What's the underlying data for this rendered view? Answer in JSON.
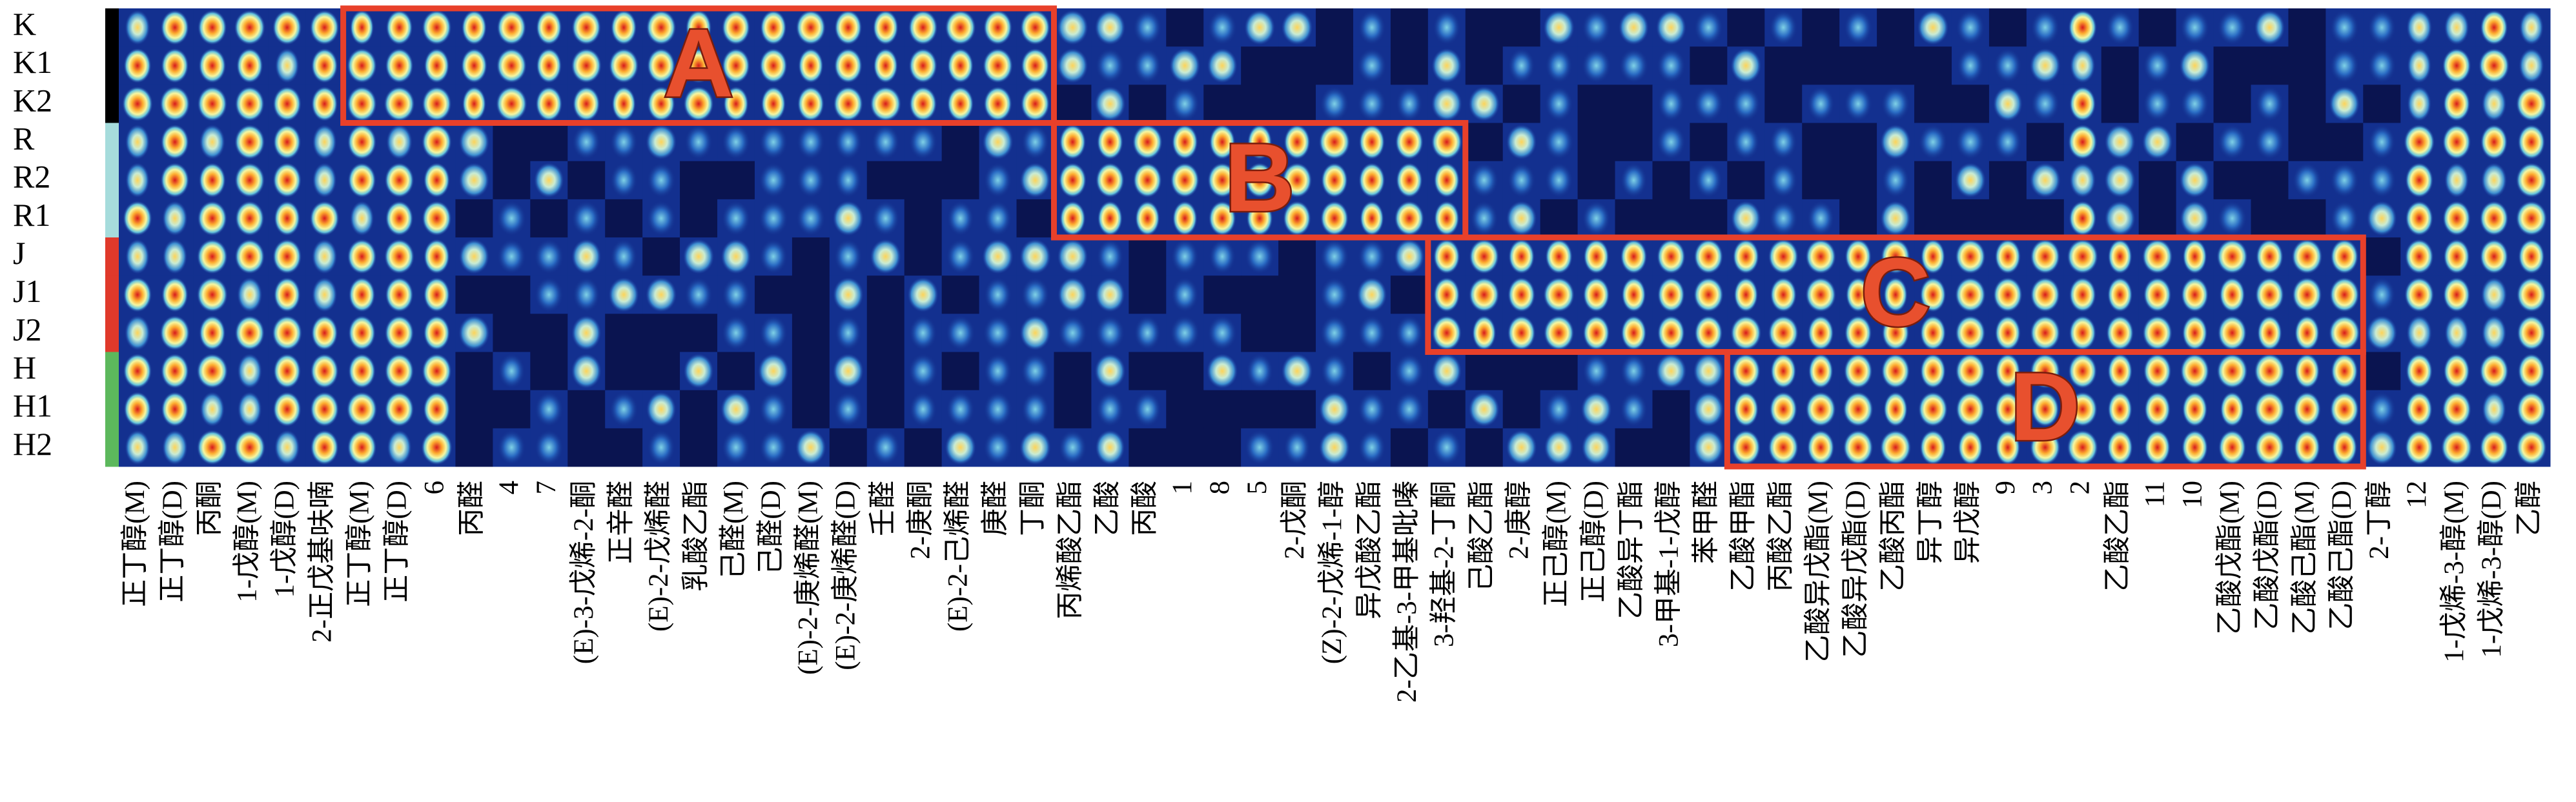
{
  "chart_data": {
    "type": "gallery",
    "rows": [
      "K",
      "K1",
      "K2",
      "R",
      "R2",
      "R1",
      "J",
      "J1",
      "J2",
      "H",
      "H1",
      "H2"
    ],
    "row_colors": [
      "#000000",
      "#000000",
      "#000000",
      "#a6dcdc",
      "#a6dcdc",
      "#a6dcdc",
      "#e0392b",
      "#e0392b",
      "#e0392b",
      "#5cb85c",
      "#5cb85c",
      "#5cb85c"
    ],
    "columns": [
      "正丁醇(M)",
      "正丁醇(D)",
      "丙酮",
      "1-戊醇(M)",
      "1-戊醇(D)",
      "2-正戊基呋喃",
      "正丁醇(M)",
      "正丁醇(D)",
      "6",
      "丙醛",
      "4",
      "7",
      "(E)-3-戊烯-2-酮",
      "正辛醛",
      "(E)-2-戊烯醛",
      "乳酸乙酯",
      "己醛(M)",
      "己醛(D)",
      "(E)-2-庚烯醛(M)",
      "(E)-2-庚烯醛(D)",
      "壬醛",
      "2-庚酮",
      "(E)-2-己烯醛",
      "庚醛",
      "丁酮",
      "丙烯酸乙酯",
      "乙酸",
      "丙酸",
      "1",
      "8",
      "5",
      "2-戊酮",
      "(Z)-2-戊烯-1-醇",
      "异戊酸乙酯",
      "2-乙基-3-甲基吡嗪",
      "3-羟基-2-丁酮",
      "己酸乙酯",
      "2-庚醇",
      "正己醇(M)",
      "正己醇(D)",
      "乙酸异丁酯",
      "3-甲基-1-戊醇",
      "苯甲醛",
      "乙酸甲酯",
      "丙酸乙酯",
      "乙酸异戊酯(M)",
      "乙酸异戊酯(D)",
      "乙酸丙酯",
      "异丁醇",
      "异戊醇",
      "9",
      "3",
      "2",
      "乙酸乙酯",
      "11",
      "10",
      "乙酸戊酯(M)",
      "乙酸戊酯(D)",
      "乙酸己酯(M)",
      "乙酸己酯(D)",
      "2-丁醇",
      "12",
      "1-戊烯-3-醇(M)",
      "1-戊烯-3-醇(D)",
      "乙醇"
    ],
    "regions": [
      {
        "label": "A"
      },
      {
        "label": "B"
      },
      {
        "label": "C"
      },
      {
        "label": "D"
      }
    ],
    "region_color": "#e8402a"
  }
}
